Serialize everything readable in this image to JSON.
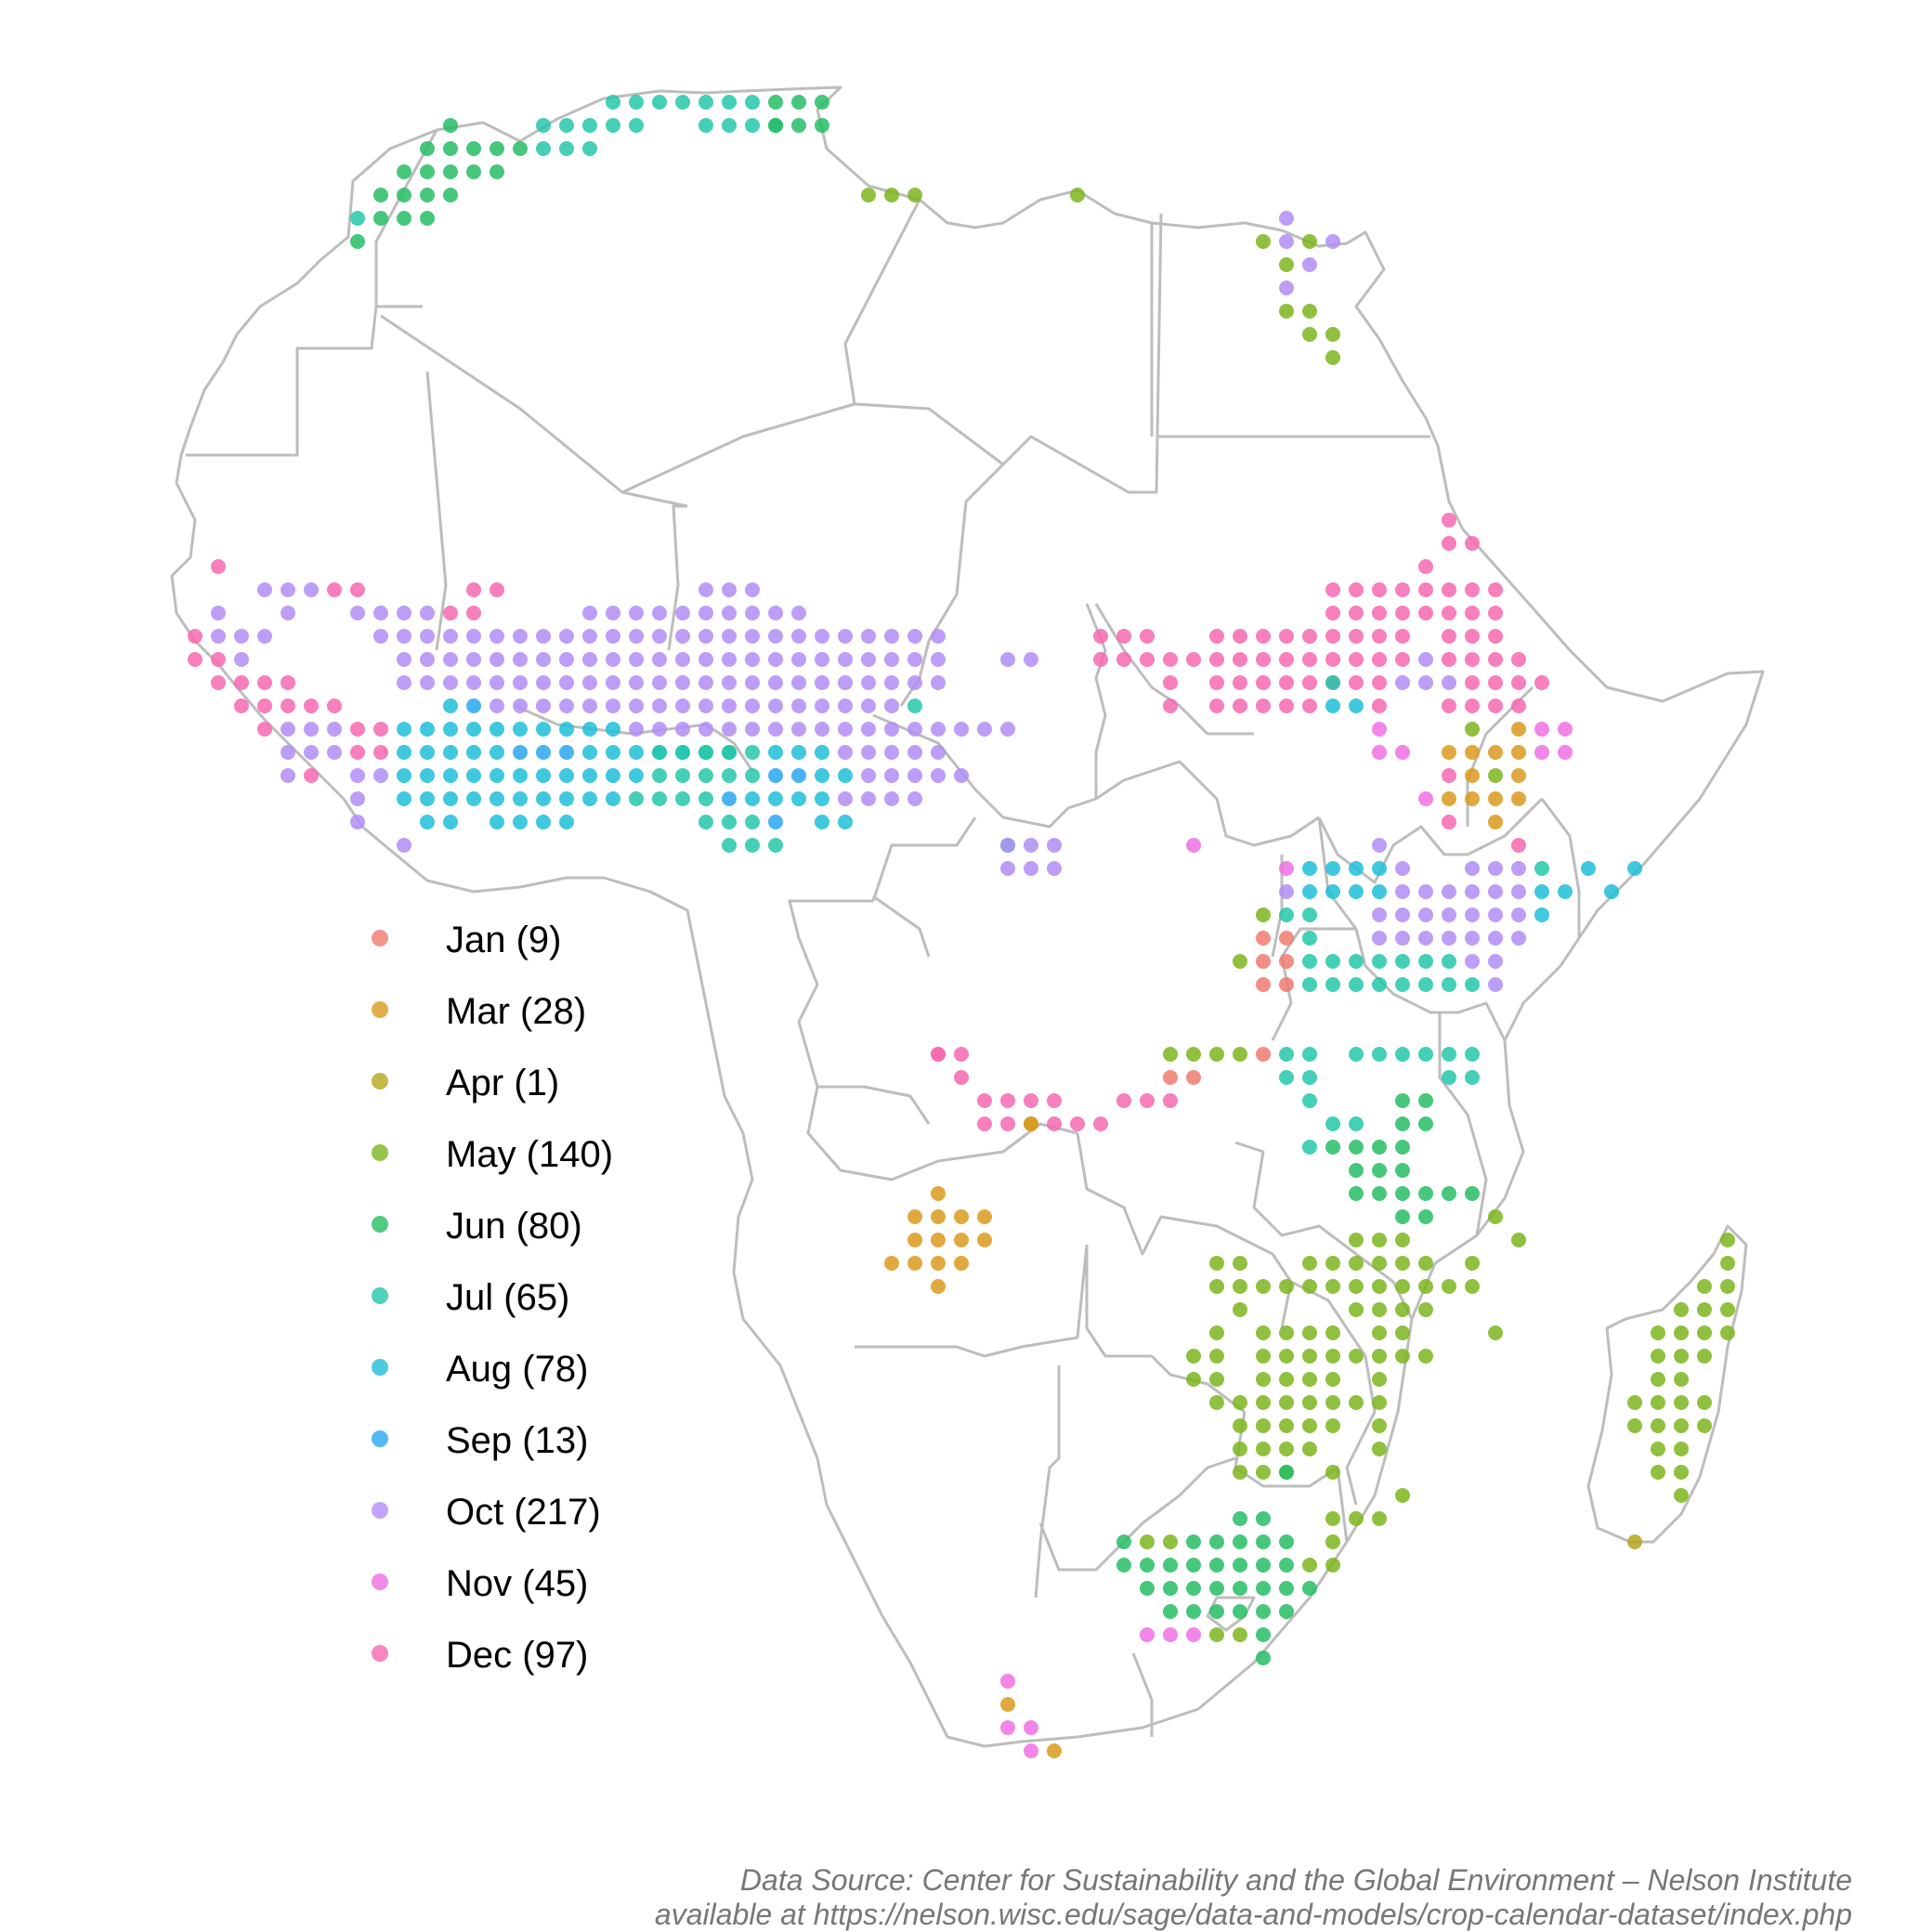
{
  "legend": [
    {
      "label": "Jan (9)",
      "color": "#F07A70"
    },
    {
      "label": "Mar (28)",
      "color": "#DB9A1E"
    },
    {
      "label": "Apr (1)",
      "color": "#B5A51F"
    },
    {
      "label": "May (140)",
      "color": "#7CB51F"
    },
    {
      "label": "Jun (80)",
      "color": "#27BD64"
    },
    {
      "label": "Jul (65)",
      "color": "#24C7A9"
    },
    {
      "label": "Aug (78)",
      "color": "#1FBED8"
    },
    {
      "label": "Sep (13)",
      "color": "#2AA7F0"
    },
    {
      "label": "Oct (217)",
      "color": "#B28DF5"
    },
    {
      "label": "Nov (45)",
      "color": "#EE71E4"
    },
    {
      "label": "Dec (97)",
      "color": "#F569B0"
    }
  ],
  "caption": {
    "line1": "Data Source: Center for Sustainability and the Global Environment – Nelson Institute",
    "line2": "available at https://nelson.wisc.edu/sage/data-and-models/crop-calendar-dataset/index.php"
  }
}
